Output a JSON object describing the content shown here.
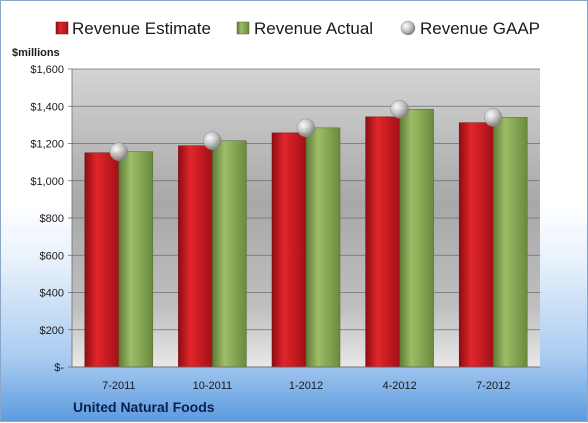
{
  "chart_data": {
    "type": "bar",
    "unit_label": "$millions",
    "company": "United Natural Foods",
    "categories": [
      "7-2011",
      "10-2011",
      "1-2012",
      "4-2012",
      "7-2012"
    ],
    "series": [
      {
        "name": "Revenue Estimate",
        "type": "bar",
        "color": "#c8161d",
        "values": [
          1150,
          1188,
          1257,
          1343,
          1312
        ]
      },
      {
        "name": "Revenue Actual",
        "type": "bar",
        "color": "#8aac57",
        "values": [
          1156,
          1215,
          1284,
          1384,
          1340
        ]
      },
      {
        "name": "Revenue GAAP",
        "type": "marker",
        "color": "#bdbdbd",
        "values": [
          1156,
          1215,
          1284,
          1384,
          1340
        ]
      }
    ],
    "y_ticks": [
      0,
      200,
      400,
      600,
      800,
      1000,
      1200,
      1400,
      1600
    ],
    "y_tick_labels": [
      "$-",
      "$200",
      "$400",
      "$600",
      "$800",
      "$1,000",
      "$1,200",
      "$1,400",
      "$1,600"
    ],
    "ylim": [
      0,
      1600
    ],
    "legend_position": "top",
    "grid": true
  }
}
